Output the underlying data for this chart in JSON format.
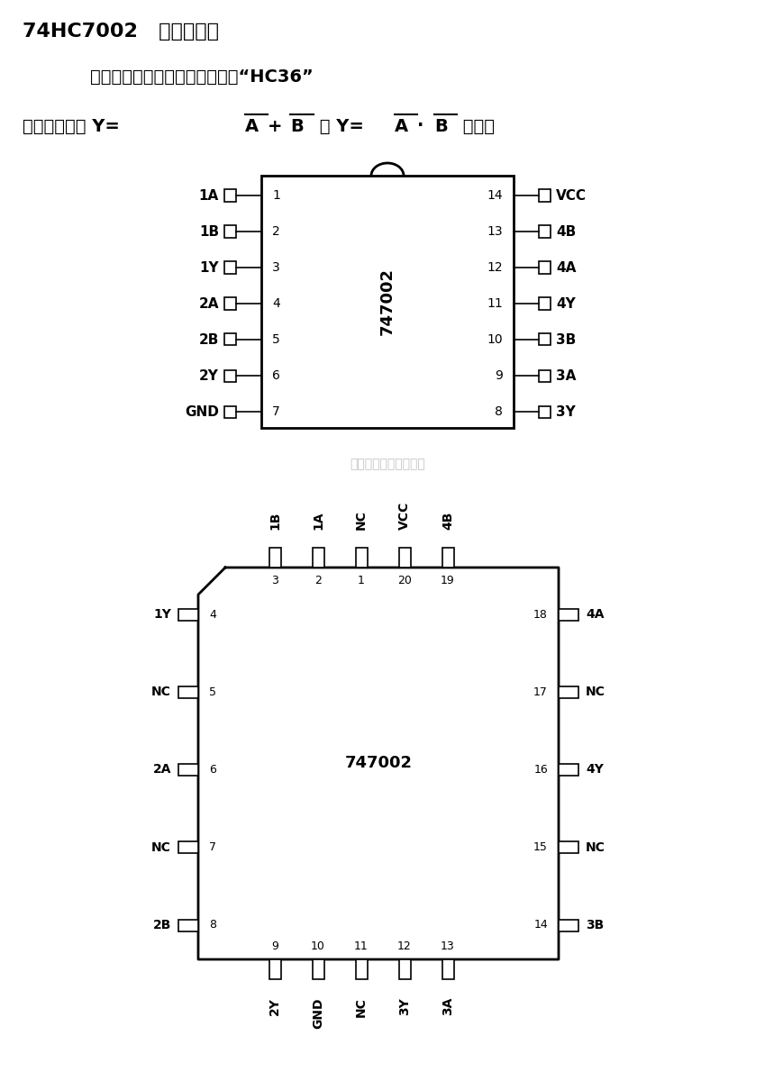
{
  "title1": "74HC7002   四正或非门",
  "desc1": "带温度补偿和噪声拟制功能，同“HC36”",
  "desc2": "兼容。可实现 Y=",
  "bg_color": "#ffffff",
  "watermark": "杭州将睷科技有限公司",
  "chip1_label": "747002",
  "chip2_label": "747002",
  "left_pins_14": [
    "1A",
    "1B",
    "1Y",
    "2A",
    "2B",
    "2Y",
    "GND"
  ],
  "right_pins_14": [
    "VCC",
    "4B",
    "4A",
    "4Y",
    "3B",
    "3A",
    "3Y"
  ],
  "left_pin_nums_14": [
    1,
    2,
    3,
    4,
    5,
    6,
    7
  ],
  "right_pin_nums_14": [
    14,
    13,
    12,
    11,
    10,
    9,
    8
  ],
  "top_pins_20": [
    "1B",
    "1A",
    "NC",
    "VCC",
    "4B"
  ],
  "top_pin_nums_20": [
    3,
    2,
    1,
    20,
    19
  ],
  "bottom_pins_20": [
    "2Y",
    "GND",
    "NC",
    "3Y",
    "3A"
  ],
  "bottom_pin_nums_20": [
    9,
    10,
    11,
    12,
    13
  ],
  "left_pins_20": [
    "1Y",
    "NC",
    "2A",
    "NC",
    "2B"
  ],
  "left_pin_nums_20": [
    4,
    5,
    6,
    7,
    8
  ],
  "right_pins_20": [
    "4A",
    "NC",
    "4Y",
    "NC",
    "3B"
  ],
  "right_pin_nums_20": [
    18,
    17,
    16,
    15,
    14
  ]
}
